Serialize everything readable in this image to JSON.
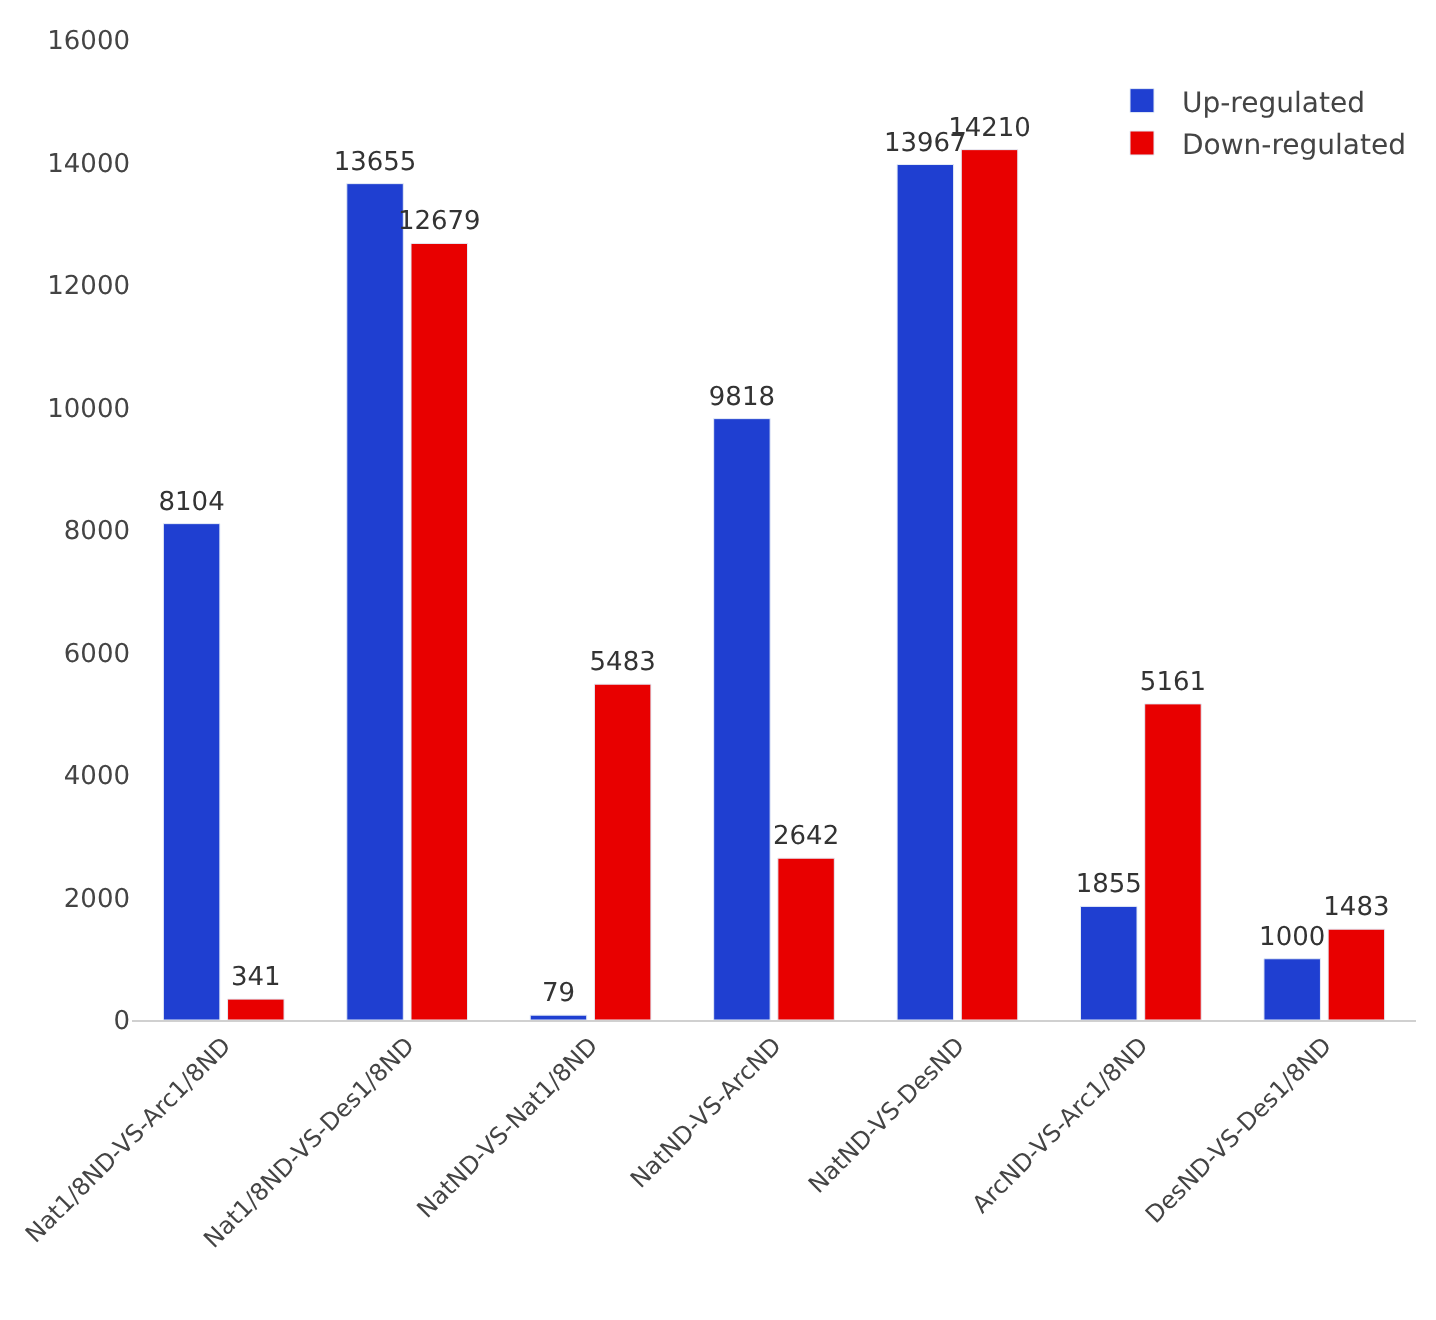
{
  "chart_data": {
    "type": "bar",
    "categories": [
      "Nat1/8ND-VS-Arc1/8ND",
      "Nat1/8ND-VS-Des1/8ND",
      "NatND-VS-Nat1/8ND",
      "NatND-VS-ArcND",
      "NatND-VS-DesND",
      "ArcND-VS-Arc1/8ND",
      "DesND-VS-Des1/8ND"
    ],
    "series": [
      {
        "name": "Up-regulated",
        "color": "#1f3fd1",
        "values": [
          8104,
          13655,
          79,
          9818,
          13967,
          1855,
          1000
        ]
      },
      {
        "name": "Down-regulated",
        "color": "#e80000",
        "values": [
          341,
          12679,
          5483,
          2642,
          14210,
          5161,
          1483
        ]
      }
    ],
    "ylim": [
      0,
      16000
    ],
    "yticks": [
      0,
      2000,
      4000,
      6000,
      8000,
      10000,
      12000,
      14000,
      16000
    ],
    "legend": "top right",
    "data_labels": true
  }
}
